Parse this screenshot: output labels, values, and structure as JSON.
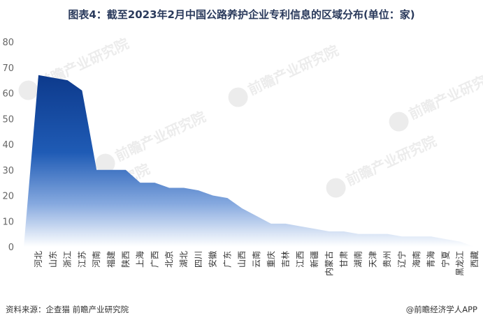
{
  "title": "图表4：截至2023年2月中国公路养护企业专利信息的区域分布(单位：家)",
  "source": "资料来源：企查猫 前瞻产业研究院",
  "brand": "@前瞻经济学人APP",
  "watermark": "前瞻产业研究院",
  "colors": {
    "area_top": "#0d3a8c",
    "area_bottom": "#ffffff",
    "axis_text": "#666666"
  },
  "chart_data": {
    "type": "area",
    "title": "图表4：截至2023年2月中国公路养护企业专利信息的区域分布(单位：家)",
    "xlabel": "",
    "ylabel": "",
    "ylim": [
      0,
      80
    ],
    "yticks": [
      0,
      10,
      20,
      30,
      40,
      50,
      60,
      70,
      80
    ],
    "grid": false,
    "legend": "none",
    "categories": [
      "河北",
      "山东",
      "浙江",
      "江苏",
      "河南",
      "福建",
      "陕西",
      "上海",
      "广西",
      "北京",
      "湖北",
      "四川",
      "安徽",
      "广东",
      "山西",
      "云南",
      "重庆",
      "吉林",
      "江西",
      "新疆",
      "内蒙古",
      "甘肃",
      "湖南",
      "天津",
      "贵州",
      "辽宁",
      "海南",
      "青海",
      "宁夏",
      "黑龙江",
      "西藏"
    ],
    "values": [
      67,
      66,
      65,
      61,
      30,
      30,
      30,
      25,
      25,
      23,
      23,
      22,
      20,
      19,
      15,
      12,
      9,
      9,
      8,
      7,
      6,
      6,
      5,
      5,
      5,
      4,
      4,
      4,
      3,
      2,
      0
    ]
  }
}
